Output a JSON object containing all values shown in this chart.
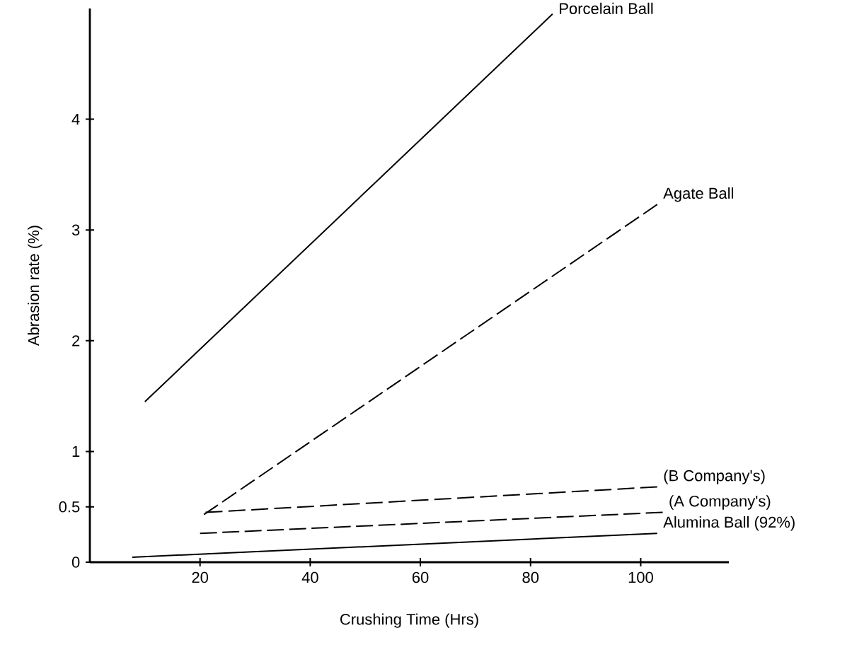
{
  "chart_data": {
    "type": "line",
    "xlabel": "Crushing Time (Hrs)",
    "ylabel": "Abrasion rate (%)",
    "xlim": [
      0,
      116
    ],
    "ylim": [
      0,
      5
    ],
    "xticks": [
      20,
      40,
      60,
      80,
      100
    ],
    "yticks": [
      0,
      0.5,
      1,
      2,
      3,
      4
    ],
    "grid": false,
    "legend": false,
    "marker": "none",
    "series": [
      {
        "name": "Porcelain Ball",
        "color": "#000000",
        "line_style": "solid",
        "x": [
          10,
          84
        ],
        "values": [
          1.45,
          4.95
        ]
      },
      {
        "name": "Agate Ball",
        "color": "#000000",
        "line_style": "dashed",
        "x": [
          20.7,
          103
        ],
        "values": [
          0.43,
          3.23
        ]
      },
      {
        "name": "(B Company's)",
        "color": "#000000",
        "line_style": "dashed",
        "x": [
          21,
          103
        ],
        "values": [
          0.45,
          0.68
        ]
      },
      {
        "name": "(A Company's)",
        "color": "#000000",
        "line_style": "dashed",
        "x": [
          20,
          104
        ],
        "values": [
          0.26,
          0.45
        ]
      },
      {
        "name": "Alumina Ball (92%)",
        "color": "#000000",
        "line_style": "solid",
        "x": [
          7.7,
          103
        ],
        "values": [
          0.045,
          0.26
        ]
      }
    ]
  }
}
